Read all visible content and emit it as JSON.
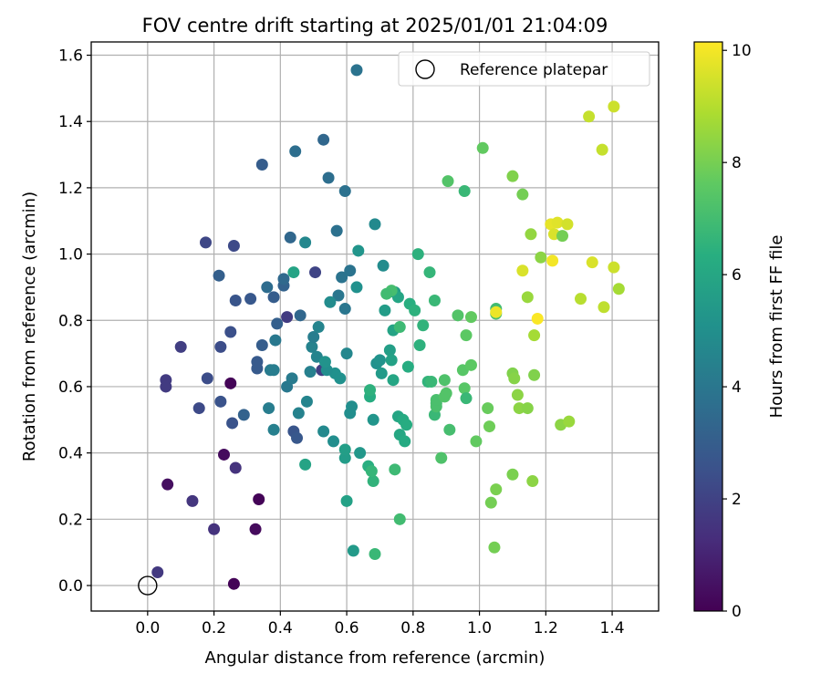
{
  "chart_data": {
    "type": "scatter",
    "title": "FOV centre drift starting at 2025/01/01 21:04:09",
    "xlabel": "Angular distance from reference (arcmin)",
    "ylabel": "Rotation from reference (arcmin)",
    "xlim": [
      -0.17,
      1.54
    ],
    "ylim": [
      -0.077,
      1.64
    ],
    "xticks": [
      "0.0",
      "0.2",
      "0.4",
      "0.6",
      "0.8",
      "1.0",
      "1.2",
      "1.4"
    ],
    "yticks": [
      "0.0",
      "0.2",
      "0.4",
      "0.6",
      "0.8",
      "1.0",
      "1.2",
      "1.4",
      "1.6"
    ],
    "grid": true,
    "legend": {
      "placement": "top-right",
      "entries": [
        "Reference platepar"
      ]
    },
    "colorbar": {
      "label": "Hours from first FF file",
      "colormap": "viridis",
      "range": [
        0,
        10.15
      ],
      "ticks": [
        "0",
        "2",
        "4",
        "6",
        "8",
        "10"
      ]
    },
    "reference_point": {
      "x": 0.0,
      "y": 0.0,
      "name": "Reference platepar"
    },
    "series": [
      {
        "points": [
          [
            0.25,
            0.61,
            0.1
          ],
          [
            0.26,
            0.005,
            0.1
          ],
          [
            0.335,
            0.26,
            0.1
          ],
          [
            0.325,
            0.17,
            0.3
          ],
          [
            0.23,
            0.395,
            0.3
          ],
          [
            0.06,
            0.305,
            0.4
          ],
          [
            0.265,
            0.355,
            1.5
          ],
          [
            0.2,
            0.17,
            1.5
          ],
          [
            0.135,
            0.255,
            1.6
          ],
          [
            0.03,
            0.04,
            1.7
          ],
          [
            0.055,
            0.62,
            1.8
          ],
          [
            0.055,
            0.6,
            1.8
          ],
          [
            0.1,
            0.72,
            1.9
          ],
          [
            0.175,
            1.035,
            2.2
          ],
          [
            0.26,
            1.025,
            2.3
          ],
          [
            0.155,
            0.535,
            2.3
          ],
          [
            0.18,
            0.625,
            2.4
          ],
          [
            0.22,
            0.72,
            2.4
          ],
          [
            0.25,
            0.765,
            2.5
          ],
          [
            0.22,
            0.555,
            2.6
          ],
          [
            0.255,
            0.49,
            2.6
          ],
          [
            0.265,
            0.86,
            2.7
          ],
          [
            0.31,
            0.865,
            2.8
          ],
          [
            0.33,
            0.655,
            2.9
          ],
          [
            0.33,
            0.675,
            2.9
          ],
          [
            0.345,
            0.725,
            3.0
          ],
          [
            0.38,
            0.87,
            3.0
          ],
          [
            0.39,
            0.79,
            3.1
          ],
          [
            0.41,
            0.905,
            3.2
          ],
          [
            0.505,
            0.945,
            2.1
          ],
          [
            0.525,
            0.65,
            1.9
          ],
          [
            0.42,
            0.81,
            1.8
          ],
          [
            0.345,
            1.27,
            3.0
          ],
          [
            0.215,
            0.935,
            3.1
          ],
          [
            0.29,
            0.515,
            3.2
          ],
          [
            0.44,
            0.465,
            2.7
          ],
          [
            0.45,
            0.445,
            2.8
          ],
          [
            0.43,
            1.05,
            3.4
          ],
          [
            0.46,
            0.815,
            3.4
          ],
          [
            0.41,
            0.925,
            3.5
          ],
          [
            0.36,
            0.9,
            3.6
          ],
          [
            0.445,
            1.31,
            3.7
          ],
          [
            0.53,
            1.345,
            3.4
          ],
          [
            0.545,
            1.23,
            3.7
          ],
          [
            0.57,
            1.07,
            3.8
          ],
          [
            0.595,
            1.19,
            3.8
          ],
          [
            0.61,
            0.95,
            3.9
          ],
          [
            0.585,
            0.93,
            3.9
          ],
          [
            0.575,
            0.875,
            4.0
          ],
          [
            0.595,
            0.835,
            4.0
          ],
          [
            0.63,
            1.555,
            3.9
          ],
          [
            0.42,
            0.6,
            4.1
          ],
          [
            0.435,
            0.625,
            4.2
          ],
          [
            0.37,
            0.65,
            4.2
          ],
          [
            0.38,
            0.65,
            4.3
          ],
          [
            0.385,
            0.74,
            4.1
          ],
          [
            0.49,
            0.645,
            4.4
          ],
          [
            0.495,
            0.72,
            4.5
          ],
          [
            0.5,
            0.75,
            4.3
          ],
          [
            0.51,
            0.69,
            4.6
          ],
          [
            0.515,
            0.78,
            4.6
          ],
          [
            0.6,
            0.7,
            4.7
          ],
          [
            0.365,
            0.535,
            4.3
          ],
          [
            0.38,
            0.47,
            4.4
          ],
          [
            0.455,
            0.52,
            4.5
          ],
          [
            0.48,
            0.555,
            4.6
          ],
          [
            0.475,
            1.035,
            4.7
          ],
          [
            0.53,
            0.465,
            4.8
          ],
          [
            0.56,
            0.435,
            5.0
          ],
          [
            0.565,
            0.64,
            5.1
          ],
          [
            0.58,
            0.625,
            5.1
          ],
          [
            0.54,
            0.65,
            5.0
          ],
          [
            0.535,
            0.675,
            5.2
          ],
          [
            0.55,
            0.855,
            4.9
          ],
          [
            0.61,
            0.52,
            5.0
          ],
          [
            0.615,
            0.54,
            5.0
          ],
          [
            0.63,
            0.9,
            5.1
          ],
          [
            0.635,
            1.01,
            5.3
          ],
          [
            0.64,
            0.4,
            5.4
          ],
          [
            0.62,
            0.105,
            5.5
          ],
          [
            0.595,
            0.385,
            5.6
          ],
          [
            0.595,
            0.41,
            5.7
          ],
          [
            0.6,
            0.255,
            5.8
          ],
          [
            0.44,
            0.945,
            5.9
          ],
          [
            0.475,
            0.365,
            5.9
          ],
          [
            0.685,
            1.09,
            4.8
          ],
          [
            0.71,
            0.965,
            4.9
          ],
          [
            0.69,
            0.67,
            5.1
          ],
          [
            0.7,
            0.68,
            5.2
          ],
          [
            0.68,
            0.5,
            5.3
          ],
          [
            0.705,
            0.64,
            5.5
          ],
          [
            0.715,
            0.83,
            5.6
          ],
          [
            0.73,
            0.71,
            5.7
          ],
          [
            0.735,
            0.68,
            5.8
          ],
          [
            0.74,
            0.77,
            5.9
          ],
          [
            0.745,
            0.885,
            5.7
          ],
          [
            0.755,
            0.87,
            6.0
          ],
          [
            0.74,
            0.62,
            6.0
          ],
          [
            0.755,
            0.51,
            6.0
          ],
          [
            0.76,
            0.455,
            6.1
          ],
          [
            0.77,
            0.5,
            6.2
          ],
          [
            0.775,
            0.435,
            6.2
          ],
          [
            0.78,
            0.485,
            6.3
          ],
          [
            0.785,
            0.66,
            6.3
          ],
          [
            0.79,
            0.85,
            6.4
          ],
          [
            0.805,
            0.83,
            6.5
          ],
          [
            0.815,
            1.0,
            6.5
          ],
          [
            0.82,
            0.725,
            6.5
          ],
          [
            0.83,
            0.785,
            6.6
          ],
          [
            0.845,
            0.615,
            6.6
          ],
          [
            0.85,
            0.945,
            6.7
          ],
          [
            0.855,
            0.615,
            6.8
          ],
          [
            0.865,
            0.515,
            6.8
          ],
          [
            0.865,
            0.86,
            6.8
          ],
          [
            0.665,
            0.36,
            6.4
          ],
          [
            0.67,
            0.57,
            6.3
          ],
          [
            0.67,
            0.59,
            6.5
          ],
          [
            0.68,
            0.315,
            6.6
          ],
          [
            0.685,
            0.095,
            6.8
          ],
          [
            0.745,
            0.35,
            6.9
          ],
          [
            0.76,
            0.2,
            7.0
          ],
          [
            0.76,
            0.78,
            6.9
          ],
          [
            0.735,
            0.89,
            7.1
          ],
          [
            0.72,
            0.88,
            7.0
          ],
          [
            0.675,
            0.345,
            6.7
          ],
          [
            0.87,
            0.55,
            7.1
          ],
          [
            0.87,
            0.54,
            7.2
          ],
          [
            0.87,
            0.56,
            7.2
          ],
          [
            0.885,
            0.385,
            7.3
          ],
          [
            0.895,
            0.62,
            7.3
          ],
          [
            0.895,
            0.57,
            7.4
          ],
          [
            0.9,
            0.58,
            7.4
          ],
          [
            0.905,
            1.22,
            7.4
          ],
          [
            0.91,
            0.47,
            7.1
          ],
          [
            0.935,
            0.815,
            7.4
          ],
          [
            0.95,
            0.65,
            7.5
          ],
          [
            0.955,
            0.595,
            7.5
          ],
          [
            0.955,
            1.19,
            6.8
          ],
          [
            0.96,
            0.565,
            6.8
          ],
          [
            0.96,
            0.755,
            7.6
          ],
          [
            0.975,
            0.665,
            7.6
          ],
          [
            0.975,
            0.81,
            7.7
          ],
          [
            0.99,
            0.435,
            7.7
          ],
          [
            1.01,
            1.32,
            7.7
          ],
          [
            1.025,
            0.535,
            7.8
          ],
          [
            1.03,
            0.48,
            7.9
          ],
          [
            1.035,
            0.25,
            8.0
          ],
          [
            1.045,
            0.115,
            8.0
          ],
          [
            1.05,
            0.29,
            8.1
          ],
          [
            1.05,
            0.82,
            7.2
          ],
          [
            1.05,
            0.835,
            7.0
          ],
          [
            1.1,
            0.335,
            8.1
          ],
          [
            1.1,
            0.64,
            8.2
          ],
          [
            1.1,
            1.235,
            8.2
          ],
          [
            1.105,
            0.625,
            8.3
          ],
          [
            1.115,
            0.575,
            8.4
          ],
          [
            1.12,
            0.535,
            8.4
          ],
          [
            1.13,
            1.18,
            8.0
          ],
          [
            1.145,
            0.535,
            8.3
          ],
          [
            1.145,
            0.87,
            8.6
          ],
          [
            1.155,
            1.06,
            8.5
          ],
          [
            1.16,
            0.315,
            8.4
          ],
          [
            1.165,
            0.635,
            8.2
          ],
          [
            1.165,
            0.755,
            8.8
          ],
          [
            1.175,
            0.805,
            10.1
          ],
          [
            1.185,
            0.99,
            8.4
          ],
          [
            1.13,
            0.95,
            9.6
          ],
          [
            1.05,
            0.825,
            9.9
          ],
          [
            1.215,
            1.09,
            9.8
          ],
          [
            1.22,
            0.98,
            10.0
          ],
          [
            1.225,
            1.06,
            9.6
          ],
          [
            1.235,
            1.095,
            9.7
          ],
          [
            1.25,
            1.055,
            8.0
          ],
          [
            1.245,
            0.485,
            8.4
          ],
          [
            1.265,
            1.09,
            9.5
          ],
          [
            1.27,
            0.495,
            8.6
          ],
          [
            1.305,
            0.865,
            9.1
          ],
          [
            1.33,
            1.415,
            9.3
          ],
          [
            1.34,
            0.975,
            9.6
          ],
          [
            1.37,
            1.315,
            9.3
          ],
          [
            1.375,
            0.84,
            9.2
          ],
          [
            1.405,
            1.445,
            9.4
          ],
          [
            1.405,
            0.96,
            9.4
          ],
          [
            1.42,
            0.895,
            8.8
          ]
        ]
      }
    ]
  }
}
